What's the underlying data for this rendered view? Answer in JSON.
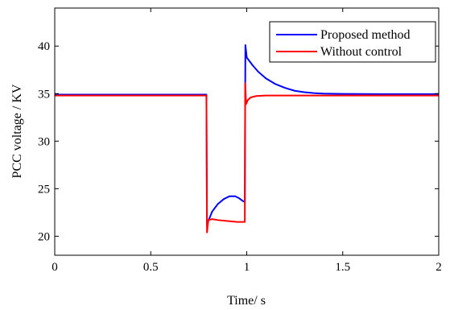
{
  "chart_data": {
    "type": "line",
    "title": "",
    "xlabel": "Time/ s",
    "ylabel": "PCC voltage / KV",
    "xlim": [
      0,
      2
    ],
    "ylim": [
      18,
      44
    ],
    "xticks": [
      0,
      0.5,
      1,
      1.5,
      2
    ],
    "xtick_labels": [
      "0",
      "0.5",
      "1",
      "1.5",
      "2"
    ],
    "yticks": [
      20,
      25,
      30,
      35,
      40
    ],
    "ytick_labels": [
      "20",
      "25",
      "30",
      "35",
      "40"
    ],
    "grid": false,
    "legend_position": "top-right",
    "series": [
      {
        "name": "Proposed method",
        "color": "#0000ff",
        "points": [
          [
            0,
            34.9
          ],
          [
            0.79,
            34.9
          ],
          [
            0.793,
            21.2
          ],
          [
            0.8,
            21.6
          ],
          [
            0.82,
            22.6
          ],
          [
            0.85,
            23.4
          ],
          [
            0.88,
            23.9
          ],
          [
            0.91,
            24.2
          ],
          [
            0.94,
            24.2
          ],
          [
            0.96,
            24.0
          ],
          [
            0.98,
            23.7
          ],
          [
            0.99,
            23.6
          ],
          [
            0.993,
            40.1
          ],
          [
            1.0,
            38.8
          ],
          [
            1.03,
            38.0
          ],
          [
            1.06,
            37.3
          ],
          [
            1.1,
            36.6
          ],
          [
            1.15,
            36.0
          ],
          [
            1.2,
            35.6
          ],
          [
            1.25,
            35.3
          ],
          [
            1.3,
            35.15
          ],
          [
            1.35,
            35.05
          ],
          [
            1.4,
            35.0
          ],
          [
            1.5,
            34.97
          ],
          [
            1.7,
            34.95
          ],
          [
            2.0,
            34.95
          ]
        ]
      },
      {
        "name": "Without control",
        "color": "#ff0000",
        "points": [
          [
            0,
            34.8
          ],
          [
            0.79,
            34.8
          ],
          [
            0.793,
            20.4
          ],
          [
            0.8,
            21.7
          ],
          [
            0.82,
            21.8
          ],
          [
            0.85,
            21.7
          ],
          [
            0.9,
            21.6
          ],
          [
            0.95,
            21.5
          ],
          [
            0.99,
            21.5
          ],
          [
            0.992,
            36.1
          ],
          [
            0.997,
            33.9
          ],
          [
            1.005,
            34.3
          ],
          [
            1.02,
            34.6
          ],
          [
            1.05,
            34.75
          ],
          [
            1.1,
            34.8
          ],
          [
            1.5,
            34.8
          ],
          [
            2.0,
            34.8
          ]
        ]
      }
    ]
  }
}
